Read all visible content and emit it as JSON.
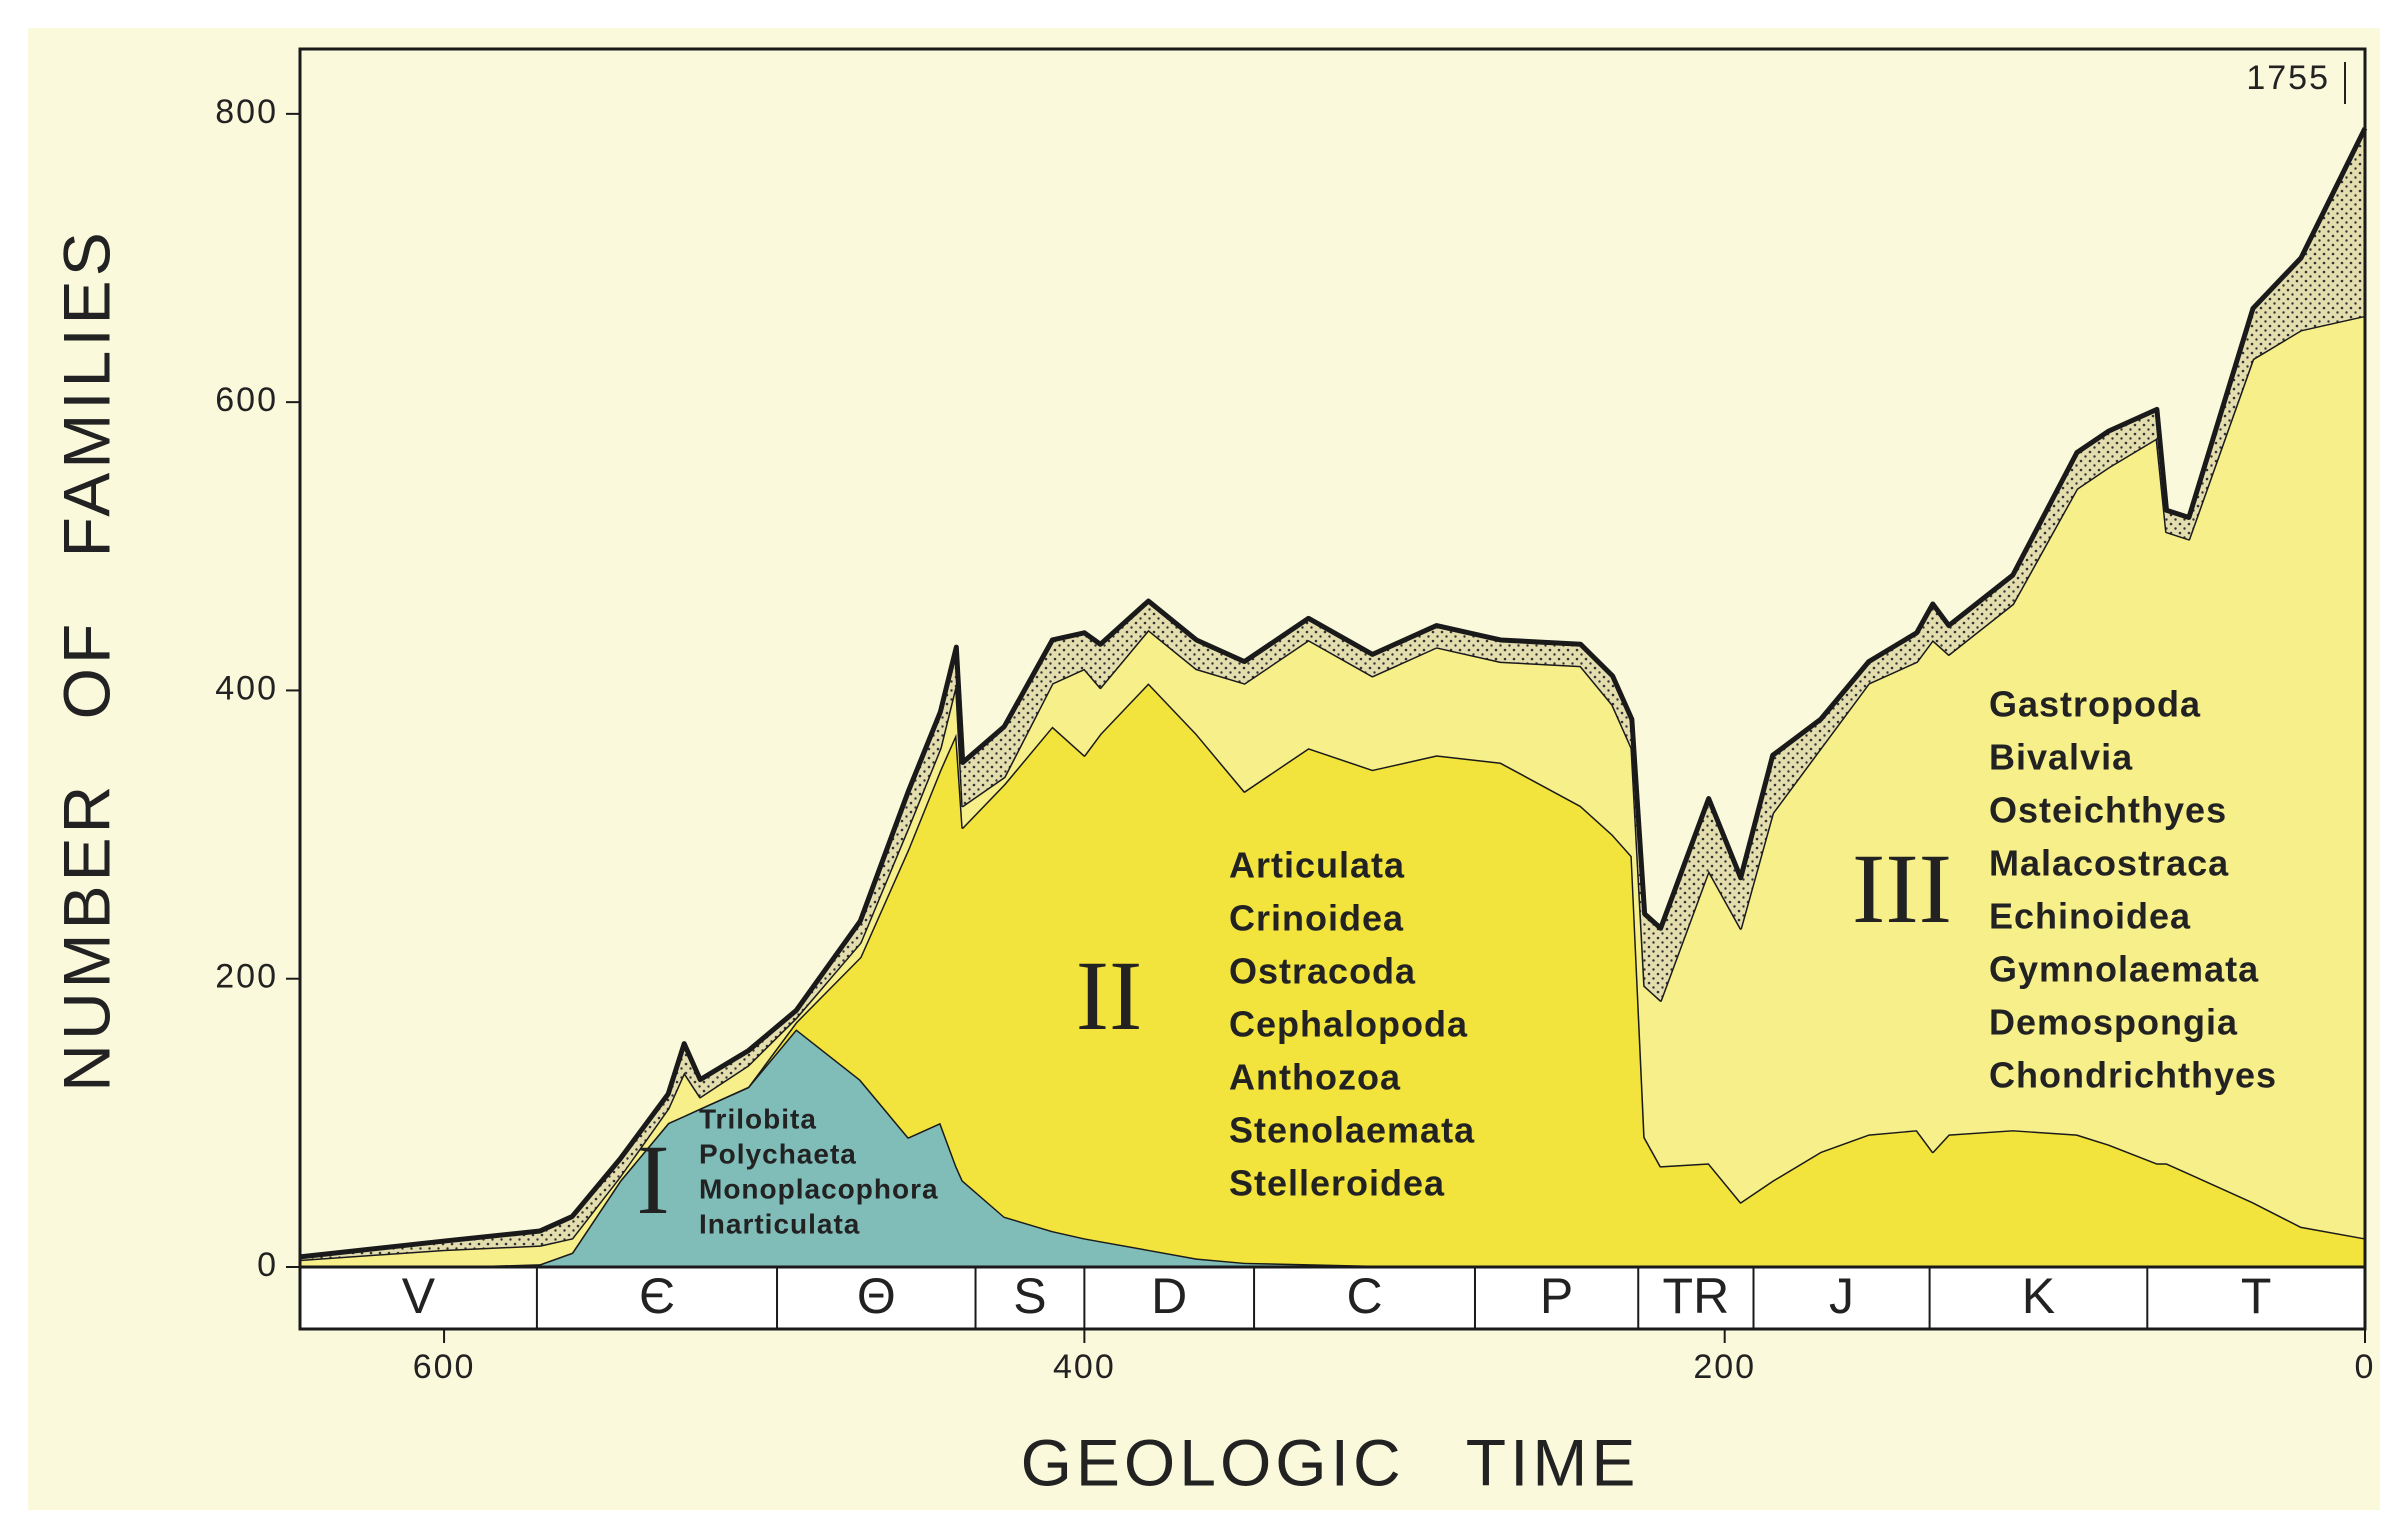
{
  "chart_data": {
    "type": "stacked-area",
    "xlabel": "GEOLOGIC TIME",
    "ylabel": "NUMBER OF FAMILIES",
    "annotation": "1755",
    "xlim": [
      645,
      0
    ],
    "ylim": [
      0,
      845
    ],
    "xticks": [
      600,
      400,
      200,
      0
    ],
    "yticks": [
      0,
      200,
      400,
      600,
      800
    ],
    "grid": false,
    "period_labels": [
      "V",
      "Є",
      "Θ",
      "S",
      "D",
      "C",
      "P",
      "TR",
      "J",
      "K",
      "T"
    ],
    "period_bounds": [
      645,
      571,
      496,
      434,
      400,
      347,
      278,
      227,
      191,
      136,
      68,
      0
    ],
    "x": [
      645,
      600,
      570,
      560,
      545,
      530,
      525,
      520,
      505,
      490,
      470,
      455,
      445,
      440,
      438,
      425,
      410,
      400,
      395,
      380,
      365,
      350,
      330,
      310,
      290,
      270,
      245,
      235,
      229,
      225,
      220,
      205,
      195,
      185,
      170,
      155,
      140,
      135,
      130,
      110,
      90,
      80,
      65,
      62,
      55,
      35,
      20,
      0
    ],
    "series": [
      {
        "name": "I",
        "color": "#80bdb8",
        "taxa": [
          "Trilobita",
          "Polychaeta",
          "Monoplacophora",
          "Inarticulata"
        ],
        "values": [
          0,
          0,
          2,
          10,
          60,
          100,
          105,
          110,
          125,
          165,
          130,
          90,
          100,
          70,
          60,
          35,
          25,
          20,
          18,
          12,
          6,
          3,
          2,
          1,
          0,
          0,
          0,
          0,
          0,
          0,
          0,
          0,
          0,
          0,
          0,
          0,
          0,
          0,
          0,
          0,
          0,
          0,
          0,
          0,
          0,
          0,
          0,
          0
        ]
      },
      {
        "name": "II",
        "color": "#f2e43c",
        "taxa": [
          "Articulata",
          "Crinoidea",
          "Ostracoda",
          "Cephalopoda",
          "Anthozoa",
          "Stenolaemata",
          "Stelleroidea"
        ],
        "values": [
          0,
          0,
          0,
          0,
          0,
          0,
          0,
          0,
          0,
          5,
          85,
          200,
          245,
          300,
          245,
          300,
          350,
          335,
          352,
          393,
          364,
          327,
          358,
          344,
          355,
          350,
          320,
          300,
          285,
          90,
          70,
          72,
          45,
          60,
          80,
          92,
          95,
          80,
          92,
          95,
          92,
          85,
          72,
          72,
          65,
          45,
          28,
          20
        ]
      },
      {
        "name": "III",
        "color": "#f7ef8a",
        "taxa": [
          "Gastropoda",
          "Bivalvia",
          "Osteichthyes",
          "Malacostraca",
          "Echinoidea",
          "Gymnolaemata",
          "Demospongia",
          "Chondrichthyes"
        ],
        "values": [
          5,
          12,
          13,
          10,
          3,
          10,
          30,
          8,
          15,
          3,
          10,
          15,
          15,
          35,
          15,
          5,
          30,
          60,
          32,
          37,
          45,
          75,
          75,
          65,
          75,
          70,
          97,
          90,
          75,
          105,
          115,
          203,
          190,
          255,
          280,
          313,
          325,
          355,
          333,
          365,
          448,
          470,
          503,
          438,
          440,
          585,
          622,
          640
        ]
      },
      {
        "color": "#e4deae",
        "pattern": "stipple",
        "values": [
          2,
          6,
          10,
          15,
          12,
          10,
          20,
          12,
          10,
          5,
          15,
          25,
          25,
          25,
          30,
          35,
          30,
          25,
          30,
          20,
          20,
          15,
          15,
          15,
          15,
          15,
          15,
          20,
          20,
          50,
          50,
          50,
          35,
          40,
          20,
          15,
          20,
          25,
          20,
          20,
          25,
          25,
          20,
          15,
          15,
          35,
          50,
          130
        ]
      }
    ]
  }
}
